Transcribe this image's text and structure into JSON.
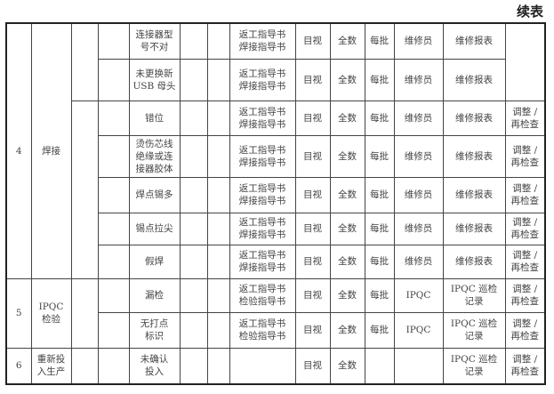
{
  "caption": "续表",
  "groups": [
    {
      "no": "4",
      "process": "焊接",
      "rows": [
        {
          "defect": "连接器型\n号不对",
          "guide": "返工指导书\n焊接指导书",
          "method": "目视",
          "qty": "全数",
          "freq": "每批",
          "person": "维修员",
          "record": "维修报表",
          "action": ""
        },
        {
          "defect": "未更换新\nUSB 母头",
          "guide": "返工指导书\n焊接指导书",
          "method": "目视",
          "qty": "全数",
          "freq": "每批",
          "person": "维修员",
          "record": "维修报表",
          "action": ""
        },
        {
          "defect": "错位",
          "guide": "返工指导书\n焊接指导书",
          "method": "目视",
          "qty": "全数",
          "freq": "每批",
          "person": "维修员",
          "record": "维修报表",
          "action": "调整 /\n再检查"
        },
        {
          "defect": "烫伤芯线\n绝缘或连\n接器胶体",
          "guide": "返工指导书\n焊接指导书",
          "method": "目视",
          "qty": "全数",
          "freq": "每批",
          "person": "维修员",
          "record": "维修报表",
          "action": "调整 /\n再检查"
        },
        {
          "defect": "焊点锡多",
          "guide": "返工指导书\n焊接指导书",
          "method": "目视",
          "qty": "全数",
          "freq": "每批",
          "person": "维修员",
          "record": "维修报表",
          "action": "调整 /\n再检查"
        },
        {
          "defect": "锡点拉尖",
          "guide": "返工指导书\n焊接指导书",
          "method": "目视",
          "qty": "全数",
          "freq": "每批",
          "person": "维修员",
          "record": "维修报表",
          "action": "调整 /\n再检查"
        },
        {
          "defect": "假焊",
          "guide": "返工指导书\n焊接指导书",
          "method": "目视",
          "qty": "全数",
          "freq": "每批",
          "person": "维修员",
          "record": "维修报表",
          "action": "调整 /\n再检查"
        }
      ]
    },
    {
      "no": "5",
      "process": "IPQC\n检验",
      "rows": [
        {
          "defect": "漏检",
          "guide": "返工指导书\n检验指导书",
          "method": "目视",
          "qty": "全数",
          "freq": "每批",
          "person": "IPQC",
          "record": "IPQC 巡检\n记录",
          "action": "调整 /\n再检查"
        },
        {
          "defect": "无打点\n标识",
          "guide": "返工指导书\n检验指导书",
          "method": "目视",
          "qty": "全数",
          "freq": "每批",
          "person": "IPQC",
          "record": "IPQC 巡检\n记录",
          "action": "调整 /\n再检查"
        }
      ]
    },
    {
      "no": "6",
      "process": "重新投\n入生产",
      "rows": [
        {
          "defect": "未确认\n投入",
          "guide": "",
          "method": "目视",
          "qty": "全数",
          "freq": "",
          "person": "",
          "record": "IPQC 巡检\n记录",
          "action": "调整 /\n再检查"
        }
      ]
    }
  ]
}
